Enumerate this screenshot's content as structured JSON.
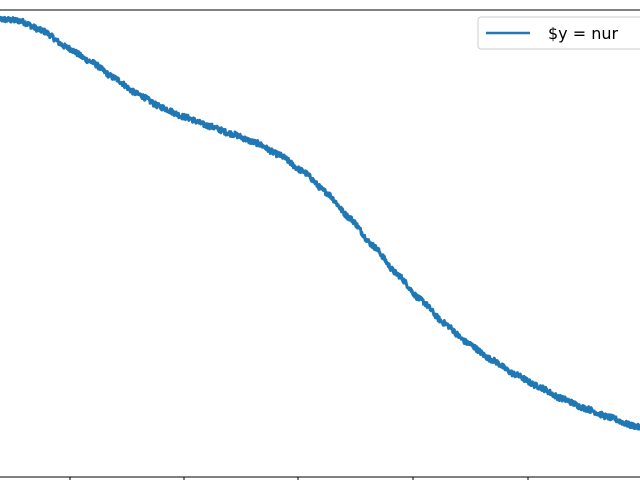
{
  "chart_data": {
    "type": "line",
    "title": "",
    "xlabel": "",
    "ylabel": "",
    "grid": false,
    "legend_position": "top-right",
    "series": [
      {
        "name": "$y = nur",
        "color": "#1f77b4",
        "points": [
          [
            0.0,
            0.981
          ],
          [
            0.05,
            0.977
          ],
          [
            0.1,
            0.955
          ],
          [
            0.15,
            0.92
          ],
          [
            0.2,
            0.89
          ],
          [
            0.25,
            0.855
          ],
          [
            0.3,
            0.82
          ],
          [
            0.35,
            0.792
          ],
          [
            0.4,
            0.771
          ],
          [
            0.45,
            0.752
          ],
          [
            0.5,
            0.735
          ],
          [
            0.55,
            0.716
          ],
          [
            0.6,
            0.69
          ],
          [
            0.65,
            0.655
          ],
          [
            0.7,
            0.61
          ],
          [
            0.75,
            0.555
          ],
          [
            0.8,
            0.495
          ],
          [
            0.85,
            0.435
          ],
          [
            0.9,
            0.38
          ],
          [
            0.95,
            0.33
          ],
          [
            1.0,
            0.287
          ],
          [
            1.05,
            0.252
          ],
          [
            1.1,
            0.22
          ],
          [
            1.15,
            0.194
          ],
          [
            1.2,
            0.168
          ],
          [
            1.25,
            0.147
          ],
          [
            1.3,
            0.128
          ],
          [
            1.35,
            0.11
          ],
          [
            1.4,
            0.094
          ]
        ]
      }
    ],
    "noise_amplitude": 0.006
  }
}
